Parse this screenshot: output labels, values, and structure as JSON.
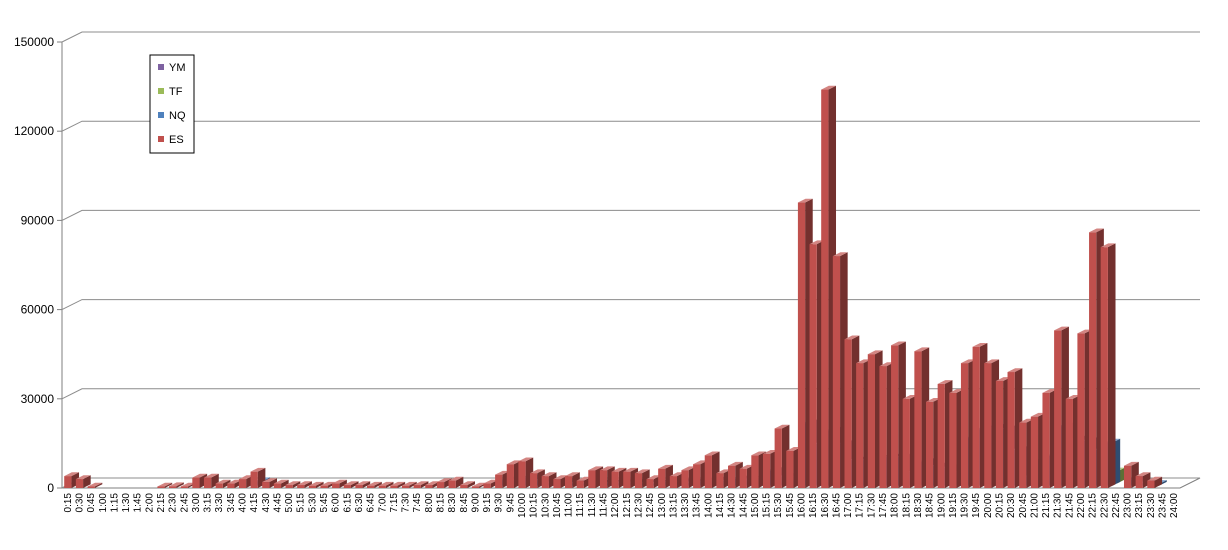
{
  "chart_data": {
    "type": "bar",
    "style": "3d-clustered-column",
    "title": "",
    "xlabel": "",
    "ylabel": "",
    "ylim": [
      0,
      150000
    ],
    "yticks": [
      0,
      30000,
      60000,
      90000,
      120000,
      150000
    ],
    "grid": true,
    "legend_position": "top-left",
    "legend_items": [
      "YM",
      "TF",
      "NQ",
      "ES"
    ],
    "categories": [
      "0:15",
      "0:30",
      "0:45",
      "1:00",
      "1:15",
      "1:30",
      "1:45",
      "2:00",
      "2:15",
      "2:30",
      "2:45",
      "3:00",
      "3:15",
      "3:30",
      "3:45",
      "4:00",
      "4:15",
      "4:30",
      "4:45",
      "5:00",
      "5:15",
      "5:30",
      "5:45",
      "6:00",
      "6:15",
      "6:30",
      "6:45",
      "7:00",
      "7:15",
      "7:30",
      "7:45",
      "8:00",
      "8:15",
      "8:30",
      "8:45",
      "9:00",
      "9:15",
      "9:30",
      "9:45",
      "10:00",
      "10:15",
      "10:30",
      "10:45",
      "11:00",
      "11:15",
      "11:30",
      "11:45",
      "12:00",
      "12:15",
      "12:30",
      "12:45",
      "13:00",
      "13:15",
      "13:30",
      "13:45",
      "14:00",
      "14:15",
      "14:30",
      "14:45",
      "15:00",
      "15:15",
      "15:30",
      "15:45",
      "16:00",
      "16:15",
      "16:30",
      "16:45",
      "17:00",
      "17:15",
      "17:30",
      "17:45",
      "18:00",
      "18:15",
      "18:30",
      "18:45",
      "19:00",
      "19:15",
      "19:30",
      "19:45",
      "20:00",
      "20:15",
      "20:30",
      "20:45",
      "21:00",
      "21:15",
      "21:30",
      "21:45",
      "22:00",
      "22:15",
      "22:30",
      "22:45",
      "23:00",
      "23:15",
      "23:30",
      "23:45",
      "24:00"
    ],
    "series": [
      {
        "name": "YM",
        "color": "#7e62a1",
        "values": [
          0,
          0,
          0,
          0,
          0,
          0,
          0,
          0,
          0,
          0,
          0,
          0,
          0,
          0,
          0,
          0,
          0,
          0,
          0,
          0,
          0,
          0,
          0,
          0,
          0,
          0,
          0,
          0,
          0,
          0,
          0,
          0,
          0,
          0,
          0,
          0,
          0,
          0,
          0,
          0,
          0,
          0,
          0,
          0,
          0,
          0,
          0,
          0,
          0,
          0,
          0,
          0,
          0,
          0,
          0,
          0,
          0,
          0,
          0,
          0,
          0,
          0,
          0,
          0,
          0,
          0,
          0,
          0,
          0,
          0,
          0,
          0,
          0,
          0,
          0,
          0,
          0,
          0,
          0,
          0,
          0,
          0,
          0,
          0,
          0,
          0,
          0,
          0,
          0,
          0,
          0,
          0,
          0,
          0,
          0,
          0
        ]
      },
      {
        "name": "TF",
        "color": "#9bbb59",
        "values": [
          0,
          0,
          0,
          0,
          0,
          0,
          0,
          0,
          0,
          0,
          0,
          0,
          0,
          0,
          0,
          0,
          0,
          0,
          0,
          0,
          0,
          0,
          0,
          0,
          0,
          0,
          0,
          0,
          0,
          0,
          0,
          0,
          0,
          0,
          0,
          0,
          0,
          0,
          0,
          0,
          0,
          0,
          0,
          0,
          0,
          0,
          0,
          0,
          0,
          0,
          0,
          0,
          0,
          0,
          0,
          0,
          0,
          0,
          0,
          0,
          0,
          0,
          10500,
          7000,
          8000,
          4500,
          3500,
          3000,
          2500,
          3000,
          3000,
          2000,
          2000,
          2500,
          1500,
          1500,
          1500,
          2500,
          2500,
          3000,
          2500,
          3000,
          2000,
          2500,
          3000,
          2500,
          3000,
          4500,
          5000,
          4000,
          0,
          0,
          0,
          0,
          0,
          0
        ]
      },
      {
        "name": "NQ",
        "color": "#4f81bd",
        "values": [
          0,
          0,
          0,
          0,
          0,
          0,
          0,
          0,
          0,
          0,
          0,
          0,
          0,
          0,
          0,
          0,
          1500,
          0,
          0,
          0,
          0,
          0,
          0,
          0,
          0,
          0,
          0,
          0,
          0,
          0,
          0,
          0,
          0,
          0,
          0,
          0,
          0,
          1800,
          2000,
          2600,
          1800,
          1000,
          1500,
          800,
          700,
          800,
          800,
          1000,
          1000,
          800,
          700,
          1200,
          1200,
          1000,
          1300,
          1800,
          1500,
          2200,
          2000,
          2500,
          5000,
          3000,
          3000,
          21000,
          14000,
          18500,
          14000,
          8500,
          8500,
          9000,
          9500,
          9500,
          4500,
          8000,
          6500,
          6000,
          4500,
          16000,
          19000,
          19500,
          19000,
          12000,
          3000,
          8500,
          10000,
          20000,
          15500,
          15000,
          12000,
          14500,
          0,
          2000,
          1000,
          600,
          0,
          0
        ]
      },
      {
        "name": "ES",
        "color": "#c0504d",
        "values": [
          4000,
          3000,
          500,
          0,
          0,
          0,
          0,
          0,
          500,
          600,
          500,
          3500,
          3500,
          1500,
          1500,
          3000,
          5500,
          2000,
          1500,
          1000,
          1000,
          800,
          800,
          1500,
          1000,
          1000,
          800,
          800,
          800,
          800,
          1000,
          1000,
          2000,
          2500,
          1000,
          500,
          1500,
          4500,
          8000,
          9000,
          5000,
          4000,
          3000,
          4000,
          2500,
          6000,
          6000,
          5500,
          5500,
          5000,
          3000,
          6500,
          4000,
          6000,
          8000,
          11000,
          5000,
          7500,
          6500,
          11000,
          11500,
          20000,
          12500,
          96000,
          82000,
          134000,
          78000,
          50000,
          42000,
          45000,
          41000,
          48000,
          30000,
          46000,
          29000,
          35000,
          32000,
          42000,
          47500,
          42000,
          36000,
          39000,
          22000,
          24000,
          32000,
          53000,
          30000,
          52000,
          86000,
          81000,
          0,
          7500,
          4000,
          2500,
          0,
          0
        ]
      }
    ]
  }
}
